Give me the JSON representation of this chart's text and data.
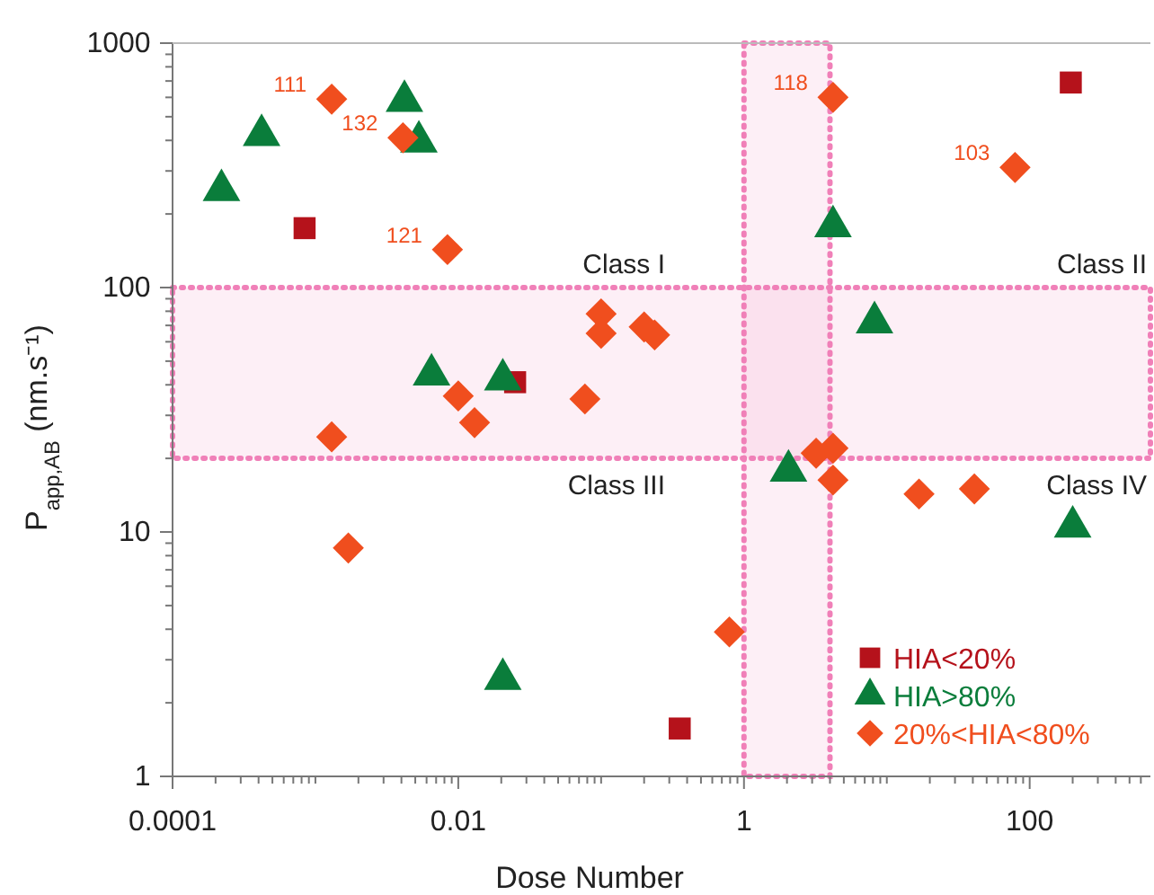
{
  "chart_data": {
    "type": "scatter",
    "xlabel": "Dose Number",
    "ylabel": "P$_{app,AB}$ (nm.s⁻¹)",
    "log": "xy",
    "xlim": [
      0.0001,
      700
    ],
    "ylim": [
      1,
      1000
    ],
    "xticks": [
      0.0001,
      {
        "value": 0.0002,
        "label": null
      },
      {
        "value": 0.0003,
        "label": null
      },
      {
        "value": 0.0004,
        "label": null
      },
      {
        "value": 0.0005,
        "label": null
      },
      {
        "value": 0.0006,
        "label": null
      },
      {
        "value": 0.0007,
        "label": null
      },
      {
        "value": 0.0008,
        "label": null
      },
      {
        "value": 0.0009,
        "label": null
      },
      {
        "value": 0.001,
        "label": null
      },
      {
        "value": 0.002,
        "label": null
      },
      {
        "value": 0.003,
        "label": null
      },
      {
        "value": 0.004,
        "label": null
      },
      {
        "value": 0.005,
        "label": null
      },
      {
        "value": 0.006,
        "label": null
      },
      {
        "value": 0.007,
        "label": null
      },
      {
        "value": 0.008,
        "label": null
      },
      {
        "value": 0.009,
        "label": null
      },
      0.01,
      {
        "value": 0.02,
        "label": null
      },
      {
        "value": 0.03,
        "label": null
      },
      {
        "value": 0.04,
        "label": null
      },
      {
        "value": 0.05,
        "label": null
      },
      {
        "value": 0.06,
        "label": null
      },
      {
        "value": 0.07,
        "label": null
      },
      {
        "value": 0.08,
        "label": null
      },
      {
        "value": 0.09,
        "label": null
      },
      {
        "value": 0.1,
        "label": null
      },
      {
        "value": 0.2,
        "label": null
      },
      {
        "value": 0.3,
        "label": null
      },
      {
        "value": 0.4,
        "label": null
      },
      {
        "value": 0.5,
        "label": null
      },
      {
        "value": 0.6,
        "label": null
      },
      {
        "value": 0.7,
        "label": null
      },
      {
        "value": 0.8,
        "label": null
      },
      {
        "value": 0.9,
        "label": null
      },
      1,
      {
        "value": 2,
        "label": null
      },
      {
        "value": 3,
        "label": null
      },
      {
        "value": 4,
        "label": null
      },
      {
        "value": 5,
        "label": null
      },
      {
        "value": 6,
        "label": null
      },
      {
        "value": 7,
        "label": null
      },
      {
        "value": 8,
        "label": null
      },
      {
        "value": 9,
        "label": null
      },
      {
        "value": 10,
        "label": null
      },
      {
        "value": 20,
        "label": null
      },
      {
        "value": 30,
        "label": null
      },
      {
        "value": 40,
        "label": null
      },
      {
        "value": 50,
        "label": null
      },
      {
        "value": 60,
        "label": null
      },
      {
        "value": 70,
        "label": null
      },
      {
        "value": 80,
        "label": null
      },
      {
        "value": 90,
        "label": null
      },
      100,
      {
        "value": 200,
        "label": null
      },
      {
        "value": 300,
        "label": null
      },
      {
        "value": 400,
        "label": null
      },
      {
        "value": 500,
        "label": null
      },
      {
        "value": 600,
        "label": null
      }
    ],
    "yticks": [
      1,
      {
        "value": 2,
        "label": null
      },
      {
        "value": 3,
        "label": null
      },
      {
        "value": 4,
        "label": null
      },
      {
        "value": 5,
        "label": null
      },
      {
        "value": 6,
        "label": null
      },
      {
        "value": 7,
        "label": null
      },
      {
        "value": 8,
        "label": null
      },
      {
        "value": 9,
        "label": null
      },
      10,
      {
        "value": 20,
        "label": null
      },
      {
        "value": 30,
        "label": null
      },
      {
        "value": 40,
        "label": null
      },
      {
        "value": 50,
        "label": null
      },
      {
        "value": 60,
        "label": null
      },
      {
        "value": 70,
        "label": null
      },
      {
        "value": 80,
        "label": null
      },
      {
        "value": 90,
        "label": null
      },
      100,
      {
        "value": 200,
        "label": null
      },
      {
        "value": 300,
        "label": null
      },
      {
        "value": 400,
        "label": null
      },
      {
        "value": 500,
        "label": null
      },
      {
        "value": 600,
        "label": null
      },
      {
        "value": 700,
        "label": null
      },
      {
        "value": 800,
        "label": null
      },
      {
        "value": 900,
        "label": null
      },
      1000
    ],
    "grid": false,
    "legend": "bottom right",
    "bands": [
      {
        "axis": "y",
        "from": 20,
        "to": 100,
        "color": "#f080b8"
      },
      {
        "axis": "x",
        "from": 1,
        "to": 4,
        "color": "#f080b8"
      }
    ],
    "annotations": [
      "Class I",
      "Class II",
      "Class III",
      "Class IV",
      {
        "text": "111",
        "x": 0.0013,
        "y": 590
      },
      {
        "text": "132",
        "x": 0.0041,
        "y": 410
      },
      {
        "text": "121",
        "x": 0.0084,
        "y": 143
      },
      {
        "text": "118",
        "x": 4.2,
        "y": 600
      },
      {
        "text": "103",
        "x": 79,
        "y": 310
      }
    ],
    "series": [
      {
        "name": "HIA<20%",
        "color": "#b5121b",
        "marker": "square",
        "x": [
          0.00084,
          0.025,
          0.355,
          194
        ],
        "values": [
          175,
          41,
          1.57,
          690
        ]
      },
      {
        "name": "HIA>80%",
        "color": "#0a7d3b",
        "marker": "triangle",
        "x": [
          0.00022,
          0.00042,
          0.0042,
          0.0053,
          0.0065,
          0.0205,
          4.2,
          8.2,
          2.05,
          0.0205,
          200
        ],
        "values": [
          250,
          420,
          580,
          395,
          44,
          42,
          178,
          72,
          17.8,
          2.5,
          10.5
        ]
      },
      {
        "name": "20%<HIA<80%",
        "color": "#f04e1e",
        "marker": "diamond",
        "x": [
          0.0013,
          0.0041,
          0.0084,
          0.1,
          0.1,
          0.2,
          0.237,
          0.01,
          0.013,
          0.0013,
          0.077,
          4.2,
          79,
          3.2,
          4.2,
          4.2,
          16.8,
          41,
          0.0017,
          0.79
        ],
        "values": [
          590,
          410,
          143,
          78,
          65,
          69,
          64,
          36,
          28,
          24.5,
          35,
          600,
          310,
          21,
          22,
          16.3,
          14.3,
          15,
          8.6,
          3.9
        ]
      }
    ]
  }
}
